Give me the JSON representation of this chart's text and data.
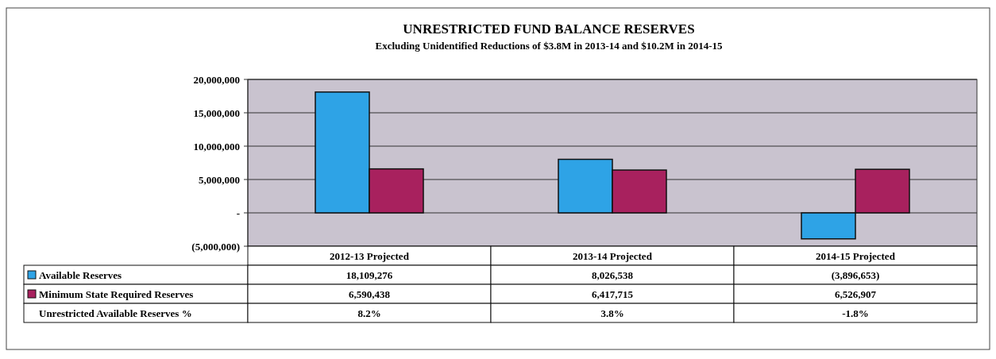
{
  "chart_data": {
    "type": "bar",
    "title": "UNRESTRICTED  FUND BALANCE  RESERVES",
    "subtitle": "Excluding Unidentified Reductions of $3.8M in 2013-14 and $10.2M in 2014-15",
    "categories": [
      "2012-13 Projected",
      "2013-14 Projected",
      "2014-15 Projected"
    ],
    "series": [
      {
        "name": "Available Reserves",
        "color": "#2ea3e6",
        "values": [
          18109276,
          8026538,
          -3896653
        ],
        "value_labels": [
          "18,109,276",
          "8,026,538",
          "(3,896,653)"
        ]
      },
      {
        "name": "Minimum State Required Reserves",
        "color": "#a8215e",
        "values": [
          6590438,
          6417715,
          6526907
        ],
        "value_labels": [
          "6,590,438",
          "6,417,715",
          "6,526,907"
        ]
      }
    ],
    "ylim": [
      -5000000,
      20000000
    ],
    "yticks": [
      {
        "value": -5000000,
        "label": "(5,000,000)"
      },
      {
        "value": 0,
        "label": "-"
      },
      {
        "value": 5000000,
        "label": "5,000,000"
      },
      {
        "value": 10000000,
        "label": "10,000,000"
      },
      {
        "value": 15000000,
        "label": "15,000,000"
      },
      {
        "value": 20000000,
        "label": "20,000,000"
      }
    ],
    "grid": "y",
    "legend": "bottom",
    "annotations": [
      "Unrestricted Available Reserves %",
      "8.2%",
      "3.8%",
      "-1.8%"
    ]
  }
}
